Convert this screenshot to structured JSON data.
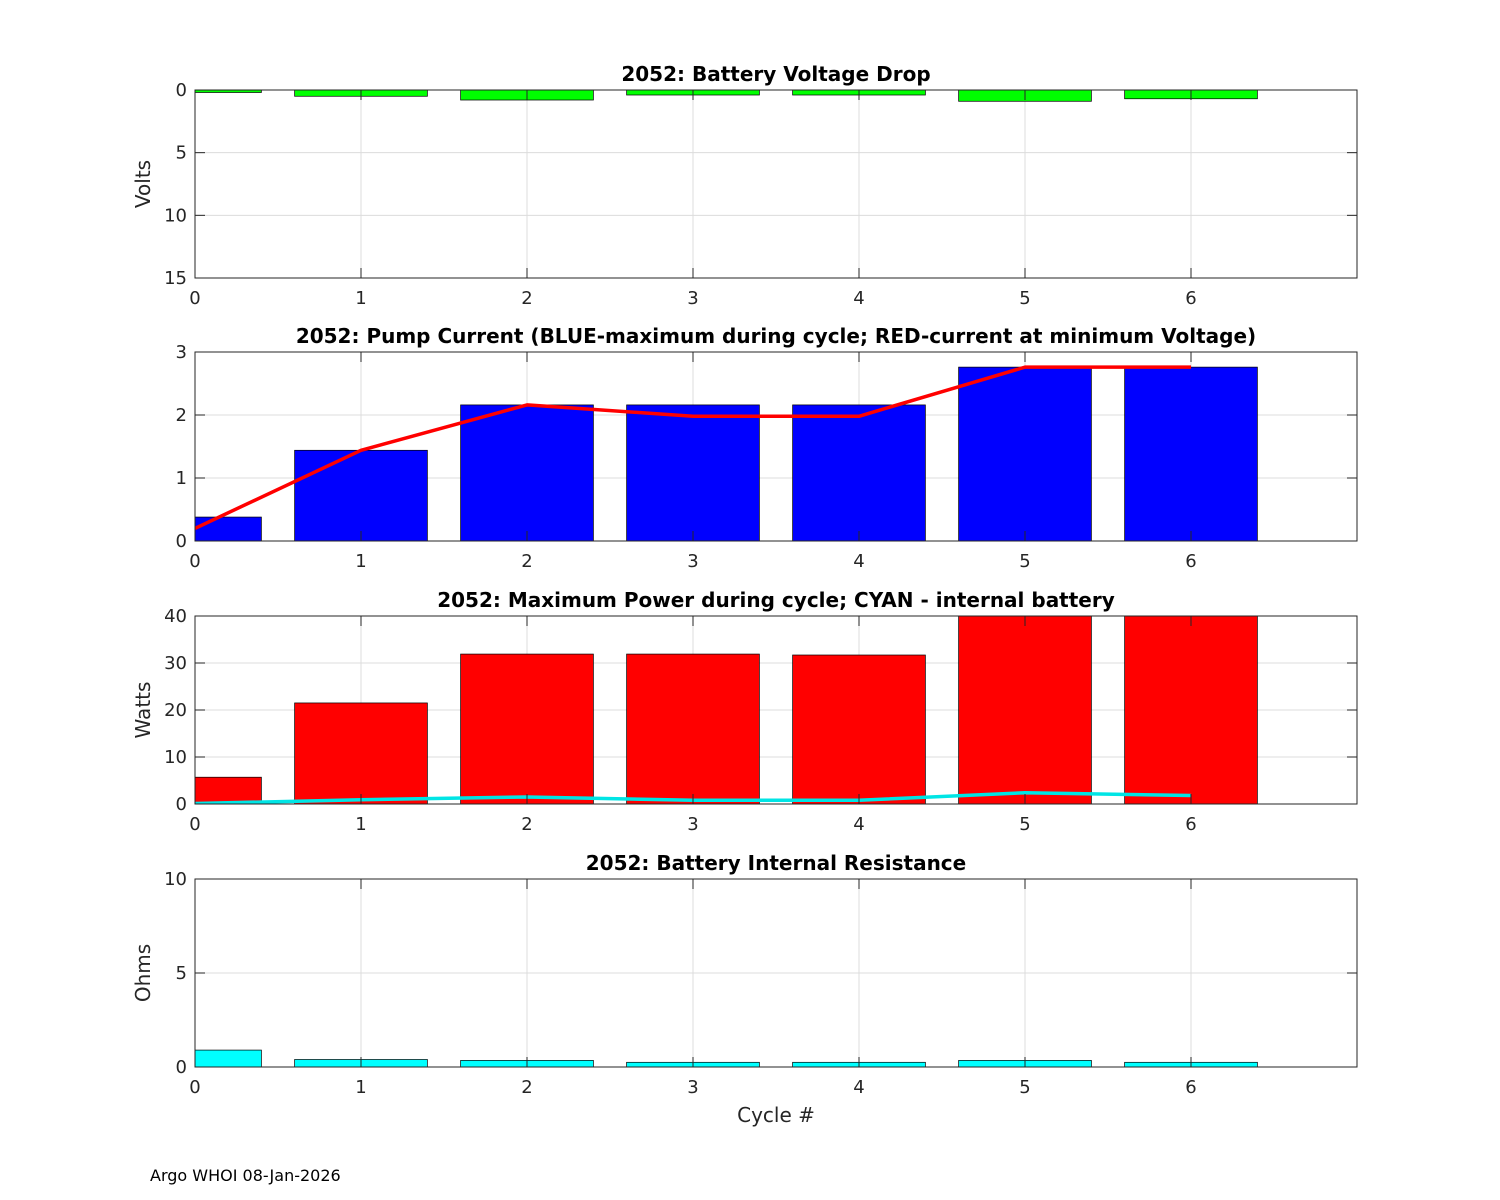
{
  "footer": "Argo WHOI 08-Jan-2026",
  "chart_data": [
    {
      "type": "bar",
      "title": "2052: Battery Voltage Drop",
      "xlabel": "",
      "ylabel": "Volts",
      "x": [
        0,
        1,
        2,
        3,
        4,
        5,
        6
      ],
      "xlim": [
        0,
        7
      ],
      "ylim": [
        0,
        15
      ],
      "y_reversed": true,
      "xticks": [
        "0",
        "1",
        "2",
        "3",
        "4",
        "5",
        "6"
      ],
      "yticks": [
        "0",
        "5",
        "10",
        "15"
      ],
      "grid": true,
      "series": [
        {
          "name": "Voltage Drop",
          "kind": "bar",
          "color": "#00ff00",
          "values": [
            0.2,
            0.5,
            0.8,
            0.4,
            0.4,
            0.9,
            0.7
          ]
        }
      ]
    },
    {
      "type": "bar",
      "title": "2052: Pump Current (BLUE-maximum during cycle; RED-current at minimum Voltage)",
      "xlabel": "",
      "ylabel": "",
      "x": [
        0,
        1,
        2,
        3,
        4,
        5,
        6
      ],
      "xlim": [
        0,
        7
      ],
      "ylim": [
        0,
        3
      ],
      "y_reversed": false,
      "xticks": [
        "0",
        "1",
        "2",
        "3",
        "4",
        "5",
        "6"
      ],
      "yticks": [
        "0",
        "1",
        "2",
        "3"
      ],
      "grid": true,
      "series": [
        {
          "name": "Maximum current during cycle",
          "kind": "bar",
          "color": "#0000ff",
          "values": [
            0.38,
            1.44,
            2.16,
            2.16,
            2.16,
            2.76,
            2.76
          ]
        },
        {
          "name": "Current at minimum voltage",
          "kind": "line",
          "color": "#ff0000",
          "values": [
            0.2,
            1.44,
            2.16,
            1.98,
            1.98,
            2.76,
            2.76
          ]
        }
      ]
    },
    {
      "type": "bar",
      "title": "2052: Maximum Power during cycle; CYAN - internal battery",
      "xlabel": "",
      "ylabel": "Watts",
      "x": [
        0,
        1,
        2,
        3,
        4,
        5,
        6
      ],
      "xlim": [
        0,
        7
      ],
      "ylim": [
        0,
        40
      ],
      "y_reversed": false,
      "xticks": [
        "0",
        "1",
        "2",
        "3",
        "4",
        "5",
        "6"
      ],
      "yticks": [
        "0",
        "10",
        "20",
        "30",
        "40"
      ],
      "grid": true,
      "series": [
        {
          "name": "Maximum Power",
          "kind": "bar",
          "color": "#ff0000",
          "values": [
            5.7,
            21.5,
            31.9,
            31.9,
            31.7,
            40,
            40
          ]
        },
        {
          "name": "Internal battery",
          "kind": "line",
          "color": "#00e5e5",
          "values": [
            0.1,
            0.9,
            1.5,
            0.8,
            0.8,
            2.4,
            1.8
          ]
        }
      ]
    },
    {
      "type": "bar",
      "title": "2052: Battery Internal Resistance",
      "xlabel": "Cycle #",
      "ylabel": "Ohms",
      "x": [
        0,
        1,
        2,
        3,
        4,
        5,
        6
      ],
      "xlim": [
        0,
        7
      ],
      "ylim": [
        0,
        10
      ],
      "y_reversed": false,
      "xticks": [
        "0",
        "1",
        "2",
        "3",
        "4",
        "5",
        "6"
      ],
      "yticks": [
        "0",
        "5",
        "10"
      ],
      "grid": true,
      "series": [
        {
          "name": "Internal Resistance",
          "kind": "bar",
          "color": "#00ffff",
          "values": [
            0.9,
            0.4,
            0.35,
            0.25,
            0.25,
            0.35,
            0.25
          ]
        }
      ]
    }
  ]
}
